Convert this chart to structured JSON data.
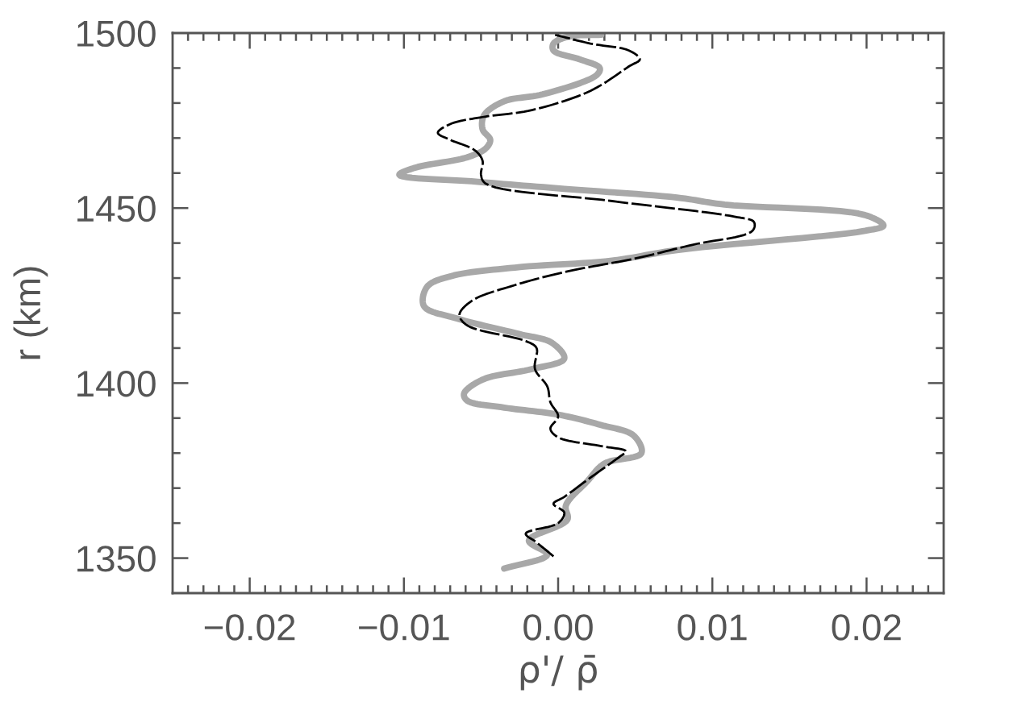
{
  "chart_data": {
    "type": "line",
    "xlabel": "ρ'/ ρ̄",
    "ylabel": "r (km)",
    "xlim": [
      -0.025,
      0.025
    ],
    "ylim": [
      1340,
      1500
    ],
    "xticks": [
      {
        "value": -0.024,
        "label": null
      },
      {
        "value": -0.023,
        "label": null
      },
      {
        "value": -0.022,
        "label": null
      },
      {
        "value": -0.021,
        "label": null
      },
      {
        "value": -0.02,
        "label": "−0.02"
      },
      {
        "value": -0.019,
        "label": null
      },
      {
        "value": -0.018,
        "label": null
      },
      {
        "value": -0.017,
        "label": null
      },
      {
        "value": -0.016,
        "label": null
      },
      {
        "value": -0.015,
        "label": null
      },
      {
        "value": -0.014,
        "label": null
      },
      {
        "value": -0.013,
        "label": null
      },
      {
        "value": -0.012,
        "label": null
      },
      {
        "value": -0.011,
        "label": null
      },
      {
        "value": -0.01,
        "label": "−0.01"
      },
      {
        "value": -0.009,
        "label": null
      },
      {
        "value": -0.008,
        "label": null
      },
      {
        "value": -0.007,
        "label": null
      },
      {
        "value": -0.006,
        "label": null
      },
      {
        "value": -0.005,
        "label": null
      },
      {
        "value": -0.004,
        "label": null
      },
      {
        "value": -0.003,
        "label": null
      },
      {
        "value": -0.002,
        "label": null
      },
      {
        "value": -0.001,
        "label": null
      },
      {
        "value": 0.0,
        "label": "0.00"
      },
      {
        "value": 0.001,
        "label": null
      },
      {
        "value": 0.002,
        "label": null
      },
      {
        "value": 0.003,
        "label": null
      },
      {
        "value": 0.004,
        "label": null
      },
      {
        "value": 0.005,
        "label": null
      },
      {
        "value": 0.006,
        "label": null
      },
      {
        "value": 0.007,
        "label": null
      },
      {
        "value": 0.008,
        "label": null
      },
      {
        "value": 0.009,
        "label": null
      },
      {
        "value": 0.01,
        "label": "0.01"
      },
      {
        "value": 0.011,
        "label": null
      },
      {
        "value": 0.012,
        "label": null
      },
      {
        "value": 0.013,
        "label": null
      },
      {
        "value": 0.014,
        "label": null
      },
      {
        "value": 0.015,
        "label": null
      },
      {
        "value": 0.016,
        "label": null
      },
      {
        "value": 0.017,
        "label": null
      },
      {
        "value": 0.018,
        "label": null
      },
      {
        "value": 0.019,
        "label": null
      },
      {
        "value": 0.02,
        "label": "0.02"
      },
      {
        "value": 0.021,
        "label": null
      },
      {
        "value": 0.022,
        "label": null
      },
      {
        "value": 0.023,
        "label": null
      },
      {
        "value": 0.024,
        "label": null
      }
    ],
    "yticks": [
      1350,
      {
        "value": 1360,
        "label": null
      },
      {
        "value": 1370,
        "label": null
      },
      {
        "value": 1380,
        "label": null
      },
      {
        "value": 1390,
        "label": null
      },
      1400,
      {
        "value": 1410,
        "label": null
      },
      {
        "value": 1420,
        "label": null
      },
      {
        "value": 1430,
        "label": null
      },
      {
        "value": 1440,
        "label": null
      },
      1450,
      {
        "value": 1460,
        "label": null
      },
      {
        "value": 1470,
        "label": null
      },
      {
        "value": 1480,
        "label": null
      },
      {
        "value": 1490,
        "label": null
      },
      1500
    ],
    "series": [
      {
        "color": "#a8a8a8",
        "line_style": "solid",
        "x": [
          -0.0035,
          -0.0007,
          -0.0019,
          0.0006,
          0.0005,
          0.0019,
          0.003,
          0.0054,
          0.0049,
          0.0028,
          0.0,
          -0.0035,
          -0.0059,
          -0.0061,
          -0.0049,
          -0.0017,
          0.0004,
          -0.0004,
          -0.0025,
          -0.0066,
          -0.0087,
          -0.0085,
          -0.007,
          -0.0028,
          0.0035,
          0.0077,
          0.0199,
          0.0211,
          0.0199,
          0.0108,
          0.0077,
          0.0004,
          -0.0052,
          -0.0103,
          -0.0093,
          -0.0059,
          -0.0047,
          -0.0044,
          -0.0049,
          -0.0048,
          -0.0035,
          -0.001,
          0.0025,
          0.0027,
          0.0014,
          -0.0003,
          -0.0003,
          0.0007,
          0.0028
        ],
        "values": [
          1347,
          1351,
          1355,
          1361,
          1365,
          1372,
          1377,
          1380,
          1385,
          1388,
          1391,
          1393,
          1395,
          1397,
          1401,
          1404,
          1407,
          1411.5,
          1414,
          1418.5,
          1422,
          1427.5,
          1430.5,
          1433,
          1435,
          1438,
          1443.5,
          1445,
          1448,
          1451,
          1453,
          1455.5,
          1457.5,
          1459.5,
          1461.5,
          1464.5,
          1467,
          1469.5,
          1472.5,
          1476.5,
          1480.5,
          1482.5,
          1488,
          1490,
          1492.5,
          1495,
          1497,
          1499,
          1499.5
        ]
      },
      {
        "color": "#000000",
        "line_style": "dashed",
        "x": [
          -0.0003,
          -0.0014,
          -0.0021,
          0.0,
          0.0004,
          -0.0003,
          0.0004,
          0.0021,
          0.004,
          0.0044,
          0.0028,
          0.0,
          -0.0005,
          0.0,
          -0.0005,
          -0.0007,
          -0.0015,
          -0.0014,
          -0.0021,
          -0.0059,
          -0.0064,
          -0.0056,
          -0.0028,
          0.0007,
          0.0049,
          0.0087,
          0.0126,
          0.0127,
          0.0115,
          0.0035,
          -0.0047,
          -0.005,
          -0.0049,
          -0.0054,
          -0.007,
          -0.0078,
          -0.007,
          -0.0049,
          -0.0017,
          0.0021,
          0.0046,
          0.0053,
          0.0046,
          0.0021,
          -0.0002
        ],
        "values": [
          1350.5,
          1354.5,
          1357,
          1360,
          1363,
          1365.5,
          1367.5,
          1373,
          1379,
          1380.5,
          1382,
          1384.5,
          1387,
          1390.5,
          1394.5,
          1399,
          1404,
          1410,
          1412,
          1416.5,
          1419.5,
          1423.5,
          1428,
          1432,
          1435.5,
          1439.5,
          1443.5,
          1446,
          1447.5,
          1452,
          1457,
          1459.5,
          1463.5,
          1466.5,
          1469.5,
          1471.5,
          1474,
          1476,
          1478,
          1483.5,
          1490.5,
          1492.5,
          1495,
          1497,
          1499.5
        ]
      }
    ]
  }
}
